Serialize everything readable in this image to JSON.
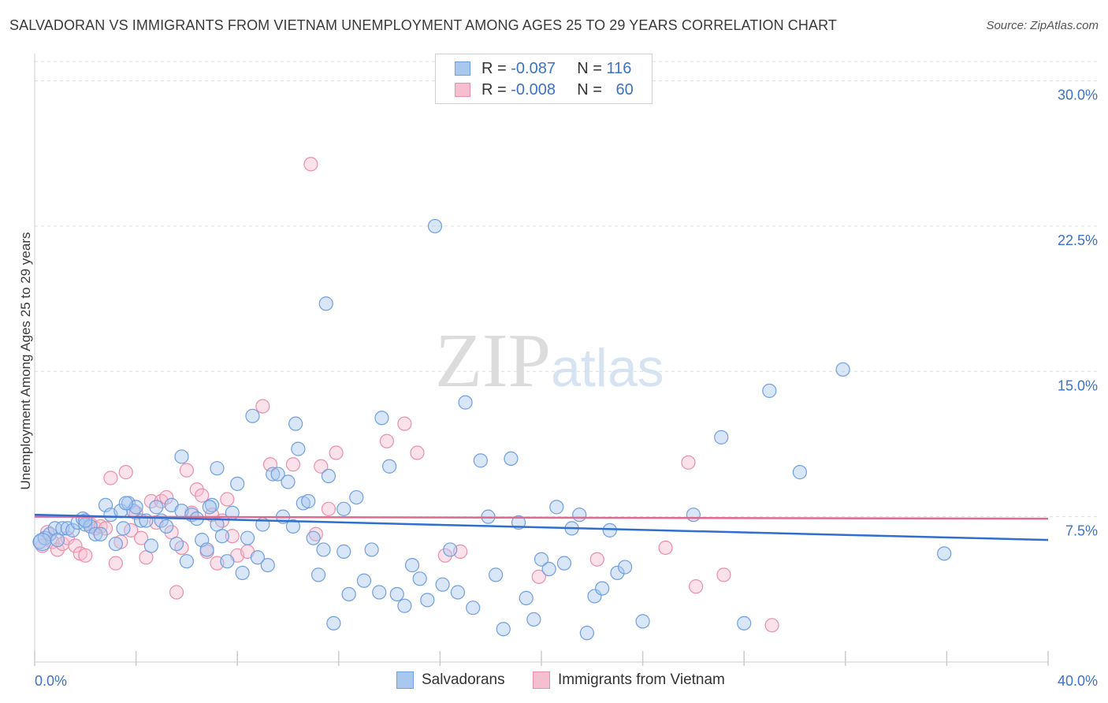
{
  "title": "SALVADORAN VS IMMIGRANTS FROM VIETNAM UNEMPLOYMENT AMONG AGES 25 TO 29 YEARS CORRELATION CHART",
  "source": "Source: ZipAtlas.com",
  "watermark": {
    "zip": "ZIP",
    "atlas": "atlas"
  },
  "legend": {
    "rows": [
      {
        "r_label": "R =",
        "r_value": "-0.087",
        "n_label": "N =",
        "n_value": "116"
      },
      {
        "r_label": "R =",
        "r_value": "-0.008",
        "n_label": "N =",
        "n_value": "60"
      }
    ]
  },
  "bottom_legend": [
    "Salvadorans",
    "Immigrants from Vietnam"
  ],
  "colors": {
    "blue_fill": "#a9c8f0",
    "blue_stroke": "#6f9fe0",
    "blue_line": "#2f6fcf",
    "pink_fill": "#f6bfd0",
    "pink_stroke": "#e98fab",
    "pink_line": "#e06b92",
    "grid": "#dddddd",
    "tick_text": "#3d72c4"
  },
  "chart_data": {
    "type": "scatter",
    "title": "SALVADORAN VS IMMIGRANTS FROM VIETNAM UNEMPLOYMENT AMONG AGES 25 TO 29 YEARS CORRELATION CHART",
    "xlabel": "",
    "ylabel": "Unemployment Among Ages 25 to 29 years",
    "xlim": [
      0,
      40
    ],
    "ylim": [
      0,
      31
    ],
    "x_ticks_labeled": [
      "0.0%",
      "40.0%"
    ],
    "y_ticks": [
      {
        "value": 7.5,
        "label": "7.5%"
      },
      {
        "value": 15.0,
        "label": "15.0%"
      },
      {
        "value": 22.5,
        "label": "22.5%"
      },
      {
        "value": 30.0,
        "label": "30.0%"
      }
    ],
    "grid": "horizontal dashed",
    "legend_position": "top-center",
    "series": [
      {
        "name": "Salvadorans",
        "r": -0.087,
        "n": 116,
        "trend": {
          "x": [
            0,
            40
          ],
          "y": [
            7.6,
            6.3
          ]
        },
        "points": [
          [
            0.2,
            6.2
          ],
          [
            0.4,
            6.4
          ],
          [
            0.6,
            6.6
          ],
          [
            0.8,
            6.9
          ],
          [
            0.9,
            6.3
          ],
          [
            1.1,
            6.9
          ],
          [
            1.3,
            6.9
          ],
          [
            1.5,
            6.8
          ],
          [
            1.7,
            7.2
          ],
          [
            1.9,
            7.4
          ],
          [
            2.0,
            7.1
          ],
          [
            2.2,
            7.0
          ],
          [
            2.4,
            6.6
          ],
          [
            2.6,
            6.6
          ],
          [
            2.8,
            8.1
          ],
          [
            3.0,
            7.6
          ],
          [
            3.2,
            6.1
          ],
          [
            3.4,
            7.8
          ],
          [
            3.5,
            6.9
          ],
          [
            3.7,
            8.2
          ],
          [
            3.9,
            7.8
          ],
          [
            4.0,
            8.0
          ],
          [
            4.2,
            7.3
          ],
          [
            4.4,
            7.3
          ],
          [
            4.6,
            6.0
          ],
          [
            4.8,
            8.0
          ],
          [
            5.0,
            7.3
          ],
          [
            5.2,
            7.0
          ],
          [
            5.4,
            8.1
          ],
          [
            5.6,
            6.1
          ],
          [
            5.8,
            7.8
          ],
          [
            6.0,
            5.2
          ],
          [
            6.2,
            7.6
          ],
          [
            6.4,
            7.4
          ],
          [
            6.6,
            6.3
          ],
          [
            6.8,
            5.8
          ],
          [
            7.0,
            8.1
          ],
          [
            7.2,
            7.1
          ],
          [
            7.4,
            6.5
          ],
          [
            7.6,
            5.2
          ],
          [
            7.8,
            7.7
          ],
          [
            8.0,
            9.2
          ],
          [
            8.2,
            4.6
          ],
          [
            8.4,
            6.4
          ],
          [
            8.6,
            12.7
          ],
          [
            8.8,
            5.4
          ],
          [
            9.0,
            7.1
          ],
          [
            9.2,
            5.0
          ],
          [
            9.4,
            9.7
          ],
          [
            9.6,
            9.7
          ],
          [
            9.8,
            7.5
          ],
          [
            10.0,
            9.3
          ],
          [
            10.2,
            7.0
          ],
          [
            10.4,
            11.0
          ],
          [
            10.6,
            8.2
          ],
          [
            10.8,
            8.3
          ],
          [
            11.0,
            6.4
          ],
          [
            11.2,
            4.5
          ],
          [
            11.4,
            5.8
          ],
          [
            11.6,
            9.6
          ],
          [
            11.8,
            2.0
          ],
          [
            12.2,
            5.7
          ],
          [
            12.4,
            3.5
          ],
          [
            12.7,
            8.5
          ],
          [
            13.0,
            4.2
          ],
          [
            13.3,
            5.8
          ],
          [
            13.6,
            3.6
          ],
          [
            14.0,
            10.1
          ],
          [
            14.3,
            3.5
          ],
          [
            14.6,
            2.9
          ],
          [
            14.9,
            5.0
          ],
          [
            15.2,
            4.3
          ],
          [
            15.5,
            3.2
          ],
          [
            15.8,
            22.5
          ],
          [
            16.1,
            4.0
          ],
          [
            16.4,
            5.8
          ],
          [
            16.7,
            3.6
          ],
          [
            17.0,
            13.4
          ],
          [
            17.3,
            2.8
          ],
          [
            17.6,
            10.4
          ],
          [
            17.9,
            7.5
          ],
          [
            18.2,
            4.5
          ],
          [
            18.5,
            1.7
          ],
          [
            18.8,
            10.5
          ],
          [
            19.1,
            7.2
          ],
          [
            19.4,
            3.3
          ],
          [
            19.7,
            2.2
          ],
          [
            20.0,
            5.3
          ],
          [
            20.3,
            4.8
          ],
          [
            20.6,
            8.0
          ],
          [
            20.9,
            5.1
          ],
          [
            21.2,
            6.9
          ],
          [
            21.5,
            7.6
          ],
          [
            21.8,
            1.5
          ],
          [
            22.1,
            3.4
          ],
          [
            22.4,
            3.8
          ],
          [
            22.7,
            6.8
          ],
          [
            23.0,
            4.6
          ],
          [
            23.3,
            4.9
          ],
          [
            24.0,
            2.1
          ],
          [
            26.0,
            7.6
          ],
          [
            27.1,
            11.6
          ],
          [
            28.0,
            2.0
          ],
          [
            29.0,
            14.0
          ],
          [
            30.2,
            9.8
          ],
          [
            31.9,
            15.1
          ],
          [
            35.9,
            5.6
          ],
          [
            13.7,
            12.6
          ],
          [
            11.5,
            18.5
          ],
          [
            5.8,
            10.6
          ],
          [
            7.2,
            10.0
          ],
          [
            10.3,
            12.3
          ],
          [
            2.0,
            7.3
          ],
          [
            3.6,
            8.2
          ],
          [
            6.9,
            8.0
          ],
          [
            12.2,
            7.9
          ]
        ]
      },
      {
        "name": "Immigrants from Vietnam",
        "r": -0.008,
        "n": 60,
        "trend": {
          "x": [
            0,
            40
          ],
          "y": [
            7.5,
            7.4
          ]
        },
        "points": [
          [
            0.3,
            6.0
          ],
          [
            0.5,
            6.7
          ],
          [
            0.7,
            6.2
          ],
          [
            0.9,
            5.8
          ],
          [
            1.1,
            6.1
          ],
          [
            1.3,
            6.4
          ],
          [
            1.6,
            6.0
          ],
          [
            1.8,
            5.6
          ],
          [
            2.0,
            5.5
          ],
          [
            2.2,
            7.1
          ],
          [
            2.4,
            6.9
          ],
          [
            2.6,
            7.0
          ],
          [
            2.8,
            6.9
          ],
          [
            3.0,
            9.5
          ],
          [
            3.2,
            5.1
          ],
          [
            3.4,
            6.2
          ],
          [
            3.6,
            9.8
          ],
          [
            3.8,
            6.8
          ],
          [
            4.0,
            7.7
          ],
          [
            4.2,
            6.4
          ],
          [
            4.4,
            5.4
          ],
          [
            4.6,
            8.3
          ],
          [
            4.8,
            7.2
          ],
          [
            5.0,
            8.3
          ],
          [
            5.2,
            8.5
          ],
          [
            5.4,
            6.7
          ],
          [
            5.6,
            3.6
          ],
          [
            5.8,
            5.9
          ],
          [
            6.0,
            9.9
          ],
          [
            6.2,
            7.7
          ],
          [
            6.4,
            8.9
          ],
          [
            6.6,
            8.6
          ],
          [
            6.8,
            5.7
          ],
          [
            7.0,
            7.6
          ],
          [
            7.2,
            5.1
          ],
          [
            7.4,
            7.3
          ],
          [
            7.6,
            8.4
          ],
          [
            7.8,
            6.5
          ],
          [
            8.0,
            5.5
          ],
          [
            8.4,
            5.7
          ],
          [
            9.3,
            10.2
          ],
          [
            10.2,
            10.2
          ],
          [
            11.1,
            6.6
          ],
          [
            11.3,
            10.1
          ],
          [
            11.9,
            10.8
          ],
          [
            11.6,
            7.9
          ],
          [
            13.9,
            11.4
          ],
          [
            14.6,
            12.3
          ],
          [
            15.1,
            10.8
          ],
          [
            16.2,
            5.5
          ],
          [
            16.8,
            5.7
          ],
          [
            19.9,
            4.4
          ],
          [
            22.2,
            5.3
          ],
          [
            24.9,
            5.9
          ],
          [
            25.8,
            10.3
          ],
          [
            26.1,
            3.9
          ],
          [
            27.2,
            4.5
          ],
          [
            29.1,
            1.9
          ],
          [
            10.9,
            25.7
          ],
          [
            9.0,
            13.2
          ]
        ]
      }
    ]
  }
}
